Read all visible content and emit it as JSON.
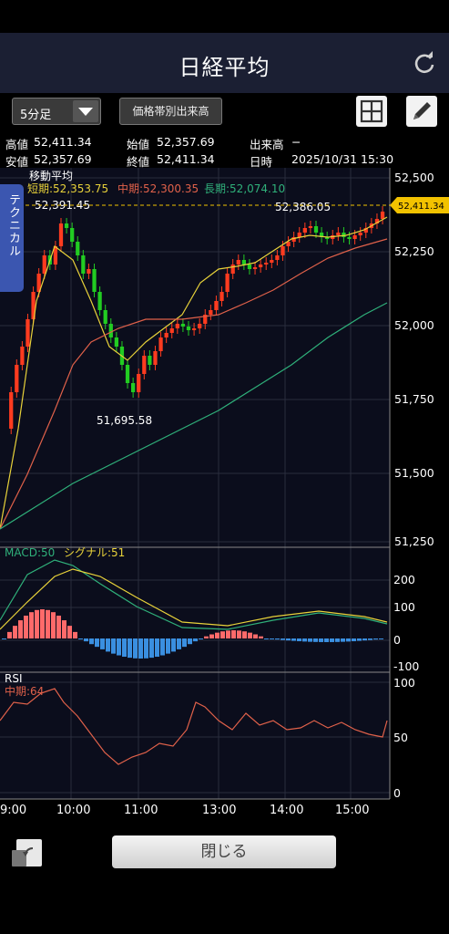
{
  "header": {
    "title": "日経平均"
  },
  "toolbar": {
    "interval": "5分足",
    "volume_by_price": "価格帯別出来高"
  },
  "info": {
    "high_label": "高値",
    "high_value": "52,411.34",
    "low_label": "安値",
    "low_value": "52,357.69",
    "open_label": "始値",
    "open_value": "52,357.69",
    "close_label": "終値",
    "close_value": "52,411.34",
    "volume_label": "出来高",
    "volume_value": "−",
    "datetime_label": "日時",
    "datetime_value": "2025/10/31 15:30"
  },
  "tech_tab": "テクニカル",
  "main_chart": {
    "ma_title": "移動平均",
    "short_label": "短期:52,353.75",
    "mid_label": "中期:52,300.35",
    "long_label": "長期:52,074.10",
    "hi_marker": "52,391.45",
    "hi_marker2": "52,386.05",
    "lo_marker": "51,695.58",
    "current_price": "52,411.34",
    "y_ticks": [
      "52,500",
      "52,250",
      "52,000",
      "51,750",
      "51,500",
      "51,250"
    ]
  },
  "macd": {
    "macd_label": "MACD:50",
    "signal_label": "シグナル:51",
    "y_ticks": [
      "200",
      "100",
      "0",
      "-100"
    ]
  },
  "rsi": {
    "title": "RSI",
    "mid_label": "中期:64",
    "y_ticks": [
      "100",
      "50",
      "0"
    ]
  },
  "x_ticks": [
    "9:00",
    "10:00",
    "11:00",
    "13:00",
    "14:00",
    "15:00"
  ],
  "colors": {
    "up": "#ff3b1f",
    "down": "#22cc22",
    "short_ma": "#e8d23a",
    "mid_ma": "#e0614a",
    "long_ma": "#2fb07a",
    "macd_pos": "#ff6a6a",
    "macd_neg": "#3a8fe0",
    "current": "#f2c200"
  },
  "footer": {
    "close_label": "閉じる"
  }
}
